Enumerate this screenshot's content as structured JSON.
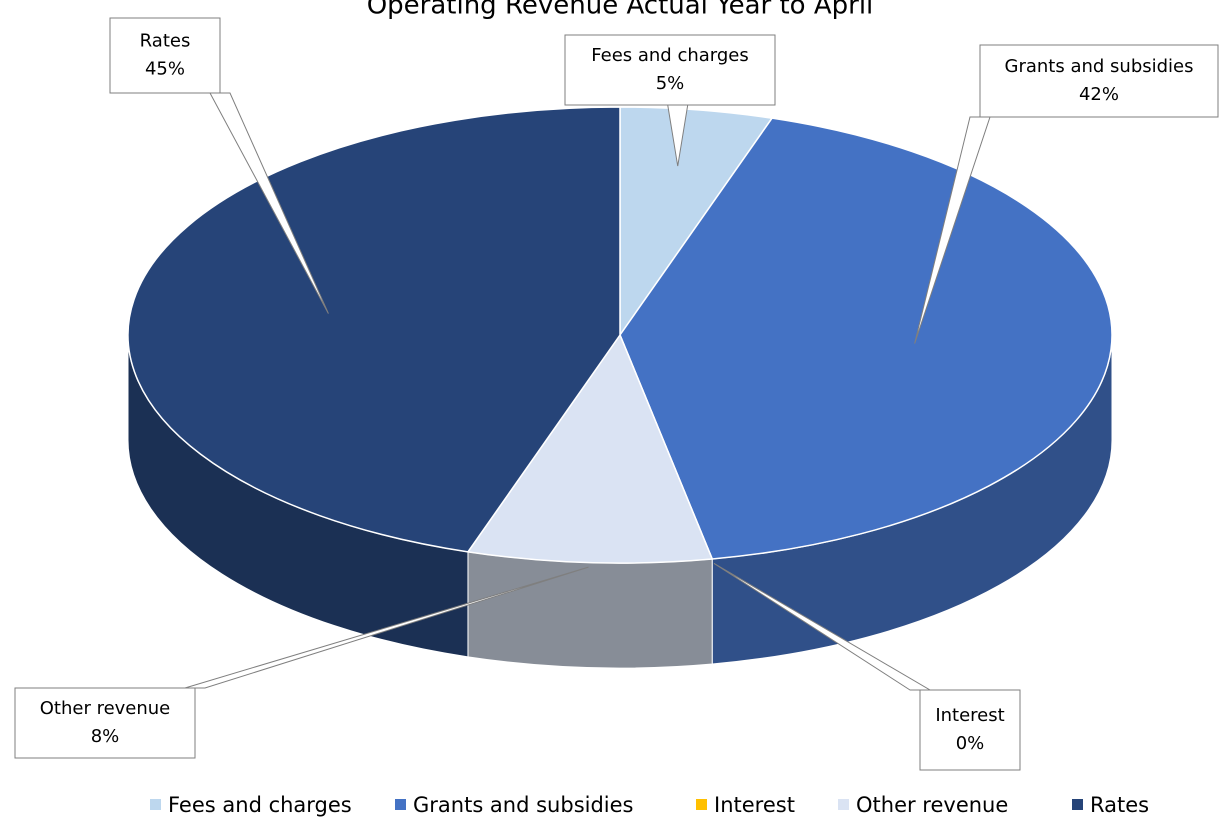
{
  "chart_data": {
    "type": "pie3d",
    "title": "Operating Revenue Actual Year to April",
    "categories": [
      "Fees and charges",
      "Grants and subsidies",
      "Interest",
      "Other revenue",
      "Rates"
    ],
    "values": [
      5,
      42,
      0,
      8,
      45
    ],
    "value_labels": [
      "5%",
      "42%",
      "0%",
      "8%",
      "45%"
    ],
    "colors": [
      "#bdd7ee",
      "#4472c4",
      "#ffc000",
      "#dae3f3",
      "#264478"
    ],
    "legend": "bottom"
  }
}
